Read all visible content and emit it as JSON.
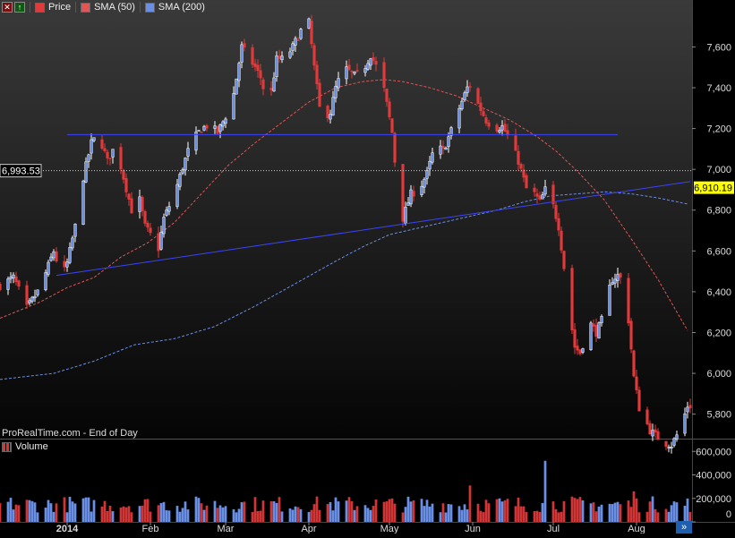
{
  "toolbar": {
    "price_label": "Price",
    "sma50_label": "SMA (50)",
    "sma200_label": "SMA (200)"
  },
  "watermark": "ProRealTime.com - End of Day",
  "volume_title": "Volume",
  "corner_button": "»",
  "chart_data": [
    {
      "type": "candlestick",
      "ylim": [
        5680,
        7830
      ],
      "y_ticks": [
        5800,
        6000,
        6200,
        6400,
        6600,
        6800,
        7000,
        7200,
        7400,
        7600,
        7800
      ],
      "y_tick_labels": [
        "5,800",
        "6,000",
        "6,200",
        "6,400",
        "6,600",
        "6,800",
        "7,000",
        "7,200",
        "7,400",
        "7,600",
        "7,800"
      ],
      "x_tick_labels": [
        "2014",
        "Feb",
        "Mar",
        "Apr",
        "May",
        "Jun",
        "Jul",
        "Aug"
      ],
      "x_tick_days": [
        0,
        31,
        59,
        90,
        120,
        151,
        181,
        212
      ],
      "x_range_days": [
        -25,
        232
      ],
      "price_marker": {
        "value": 6993.53,
        "label": "6,993.53",
        "color": "#ffffff",
        "line": "dotted"
      },
      "last_price_marker": {
        "value": 6910.19,
        "label": "6,910.19",
        "color": "#ffff00"
      },
      "up_color": "#ffffff",
      "down_color": "#e23a3a",
      "sma50_color": "#e05555",
      "sma200_color": "#6a8fe6",
      "trendline_color": "#3b43ff",
      "anchors": [
        [
          -25,
          6430
        ],
        [
          -20,
          6470
        ],
        [
          -15,
          6320
        ],
        [
          -10,
          6420
        ],
        [
          -5,
          6600
        ],
        [
          -2,
          6470
        ],
        [
          0,
          6540
        ],
        [
          3,
          6720
        ],
        [
          6,
          6960
        ],
        [
          9,
          7130
        ],
        [
          11,
          7160
        ],
        [
          13,
          7120
        ],
        [
          15,
          7040
        ],
        [
          18,
          7120
        ],
        [
          21,
          6960
        ],
        [
          24,
          6800
        ],
        [
          27,
          6850
        ],
        [
          29,
          6720
        ],
        [
          31,
          6680
        ],
        [
          33,
          6540
        ],
        [
          36,
          6760
        ],
        [
          40,
          6880
        ],
        [
          43,
          7010
        ],
        [
          46,
          7130
        ],
        [
          50,
          7200
        ],
        [
          53,
          7220
        ],
        [
          56,
          7180
        ],
        [
          59,
          7260
        ],
        [
          62,
          7370
        ],
        [
          65,
          7600
        ],
        [
          67,
          7560
        ],
        [
          70,
          7500
        ],
        [
          72,
          7450
        ],
        [
          75,
          7300
        ],
        [
          78,
          7540
        ],
        [
          81,
          7540
        ],
        [
          84,
          7600
        ],
        [
          87,
          7680
        ],
        [
          89,
          7740
        ],
        [
          90,
          7720
        ],
        [
          92,
          7500
        ],
        [
          94,
          7300
        ],
        [
          96,
          7260
        ],
        [
          98,
          7280
        ],
        [
          100,
          7400
        ],
        [
          103,
          7500
        ],
        [
          105,
          7480
        ],
        [
          107,
          7460
        ],
        [
          110,
          7480
        ],
        [
          113,
          7560
        ],
        [
          116,
          7480
        ],
        [
          118,
          7390
        ],
        [
          121,
          7180
        ],
        [
          123,
          6900
        ],
        [
          125,
          6760
        ],
        [
          128,
          6880
        ],
        [
          131,
          6900
        ],
        [
          134,
          6980
        ],
        [
          137,
          7120
        ],
        [
          140,
          7090
        ],
        [
          143,
          7190
        ],
        [
          146,
          7300
        ],
        [
          149,
          7400
        ],
        [
          151,
          7420
        ],
        [
          153,
          7320
        ],
        [
          156,
          7240
        ],
        [
          159,
          7200
        ],
        [
          162,
          7210
        ],
        [
          165,
          7140
        ],
        [
          168,
          7040
        ],
        [
          170,
          6950
        ],
        [
          172,
          6860
        ],
        [
          174,
          6880
        ],
        [
          176,
          6840
        ],
        [
          178,
          6900
        ],
        [
          180,
          6870
        ],
        [
          183,
          6720
        ],
        [
          185,
          6520
        ],
        [
          187,
          6300
        ],
        [
          189,
          6130
        ],
        [
          191,
          6100
        ],
        [
          193,
          6180
        ],
        [
          195,
          6240
        ],
        [
          197,
          6200
        ],
        [
          199,
          6260
        ],
        [
          201,
          6380
        ],
        [
          203,
          6460
        ],
        [
          205,
          6480
        ],
        [
          207,
          6450
        ],
        [
          209,
          6260
        ],
        [
          211,
          5980
        ],
        [
          213,
          5830
        ],
        [
          215,
          5780
        ],
        [
          217,
          5720
        ],
        [
          222,
          5660
        ],
        [
          225,
          5650
        ],
        [
          228,
          5720
        ],
        [
          231,
          5840
        ]
      ],
      "sma50_anchors": [
        [
          -25,
          6270
        ],
        [
          -10,
          6350
        ],
        [
          0,
          6420
        ],
        [
          10,
          6470
        ],
        [
          20,
          6570
        ],
        [
          30,
          6640
        ],
        [
          40,
          6740
        ],
        [
          50,
          6880
        ],
        [
          60,
          7020
        ],
        [
          70,
          7130
        ],
        [
          80,
          7230
        ],
        [
          90,
          7330
        ],
        [
          100,
          7400
        ],
        [
          110,
          7430
        ],
        [
          118,
          7440
        ],
        [
          125,
          7430
        ],
        [
          135,
          7400
        ],
        [
          145,
          7360
        ],
        [
          155,
          7300
        ],
        [
          165,
          7240
        ],
        [
          175,
          7160
        ],
        [
          182,
          7090
        ],
        [
          190,
          6990
        ],
        [
          200,
          6850
        ],
        [
          210,
          6660
        ],
        [
          220,
          6460
        ],
        [
          231,
          6210
        ]
      ],
      "sma200_anchors": [
        [
          -25,
          5970
        ],
        [
          -5,
          6000
        ],
        [
          10,
          6060
        ],
        [
          25,
          6140
        ],
        [
          40,
          6170
        ],
        [
          55,
          6230
        ],
        [
          70,
          6330
        ],
        [
          85,
          6440
        ],
        [
          100,
          6550
        ],
        [
          110,
          6620
        ],
        [
          120,
          6680
        ],
        [
          130,
          6710
        ],
        [
          140,
          6740
        ],
        [
          150,
          6770
        ],
        [
          160,
          6800
        ],
        [
          170,
          6840
        ],
        [
          180,
          6870
        ],
        [
          190,
          6880
        ],
        [
          200,
          6890
        ],
        [
          210,
          6880
        ],
        [
          220,
          6860
        ],
        [
          231,
          6830
        ]
      ],
      "trendlines": [
        {
          "from": [
            0,
            7170
          ],
          "to": [
            205,
            7170
          ]
        },
        {
          "from": [
            -4,
            6480
          ],
          "to": [
            232,
            6940
          ]
        }
      ]
    },
    {
      "type": "volume-bar",
      "ylim": [
        0,
        640000
      ],
      "y_ticks": [
        0,
        200000,
        400000,
        600000
      ],
      "y_tick_labels": [
        "0",
        "200,000",
        "400,000",
        "600,000"
      ],
      "spikes": [
        [
          151,
          400000
        ],
        [
          178,
          520000
        ],
        [
          172,
          300000
        ],
        [
          211,
          260000
        ],
        [
          131,
          290000
        ],
        [
          150,
          310000
        ],
        [
          186,
          230000
        ]
      ]
    }
  ]
}
